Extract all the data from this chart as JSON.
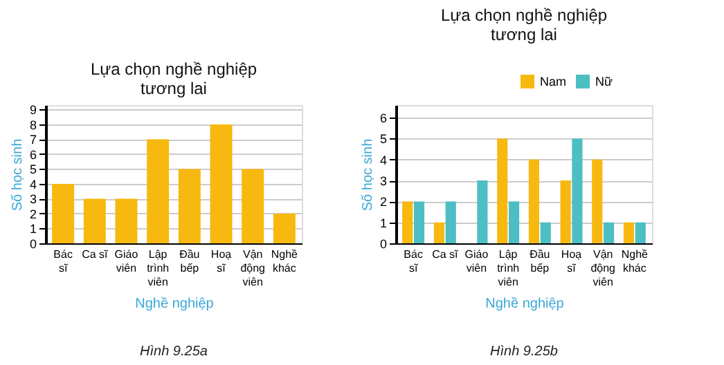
{
  "chart_data": [
    {
      "type": "bar",
      "title": "Lựa chọn nghề nghiệp tương lai",
      "xlabel": "Nghề nghiệp",
      "ylabel": "Số học sinh",
      "categories": [
        "Bác sĩ",
        "Ca sĩ",
        "Giáo viên",
        "Lập trình viên",
        "Đầu bếp",
        "Hoạ sĩ",
        "Vận động viên",
        "Nghề khác"
      ],
      "values": [
        4,
        3,
        3,
        7,
        5,
        8,
        5,
        2
      ],
      "color": "#f7b90f",
      "ylim": [
        0,
        9.3
      ],
      "yticks": [
        0,
        1,
        2,
        3,
        4,
        5,
        6,
        7,
        8,
        9
      ],
      "grid": "y",
      "legend": false,
      "annotations": [
        "Hình 9.25a"
      ]
    },
    {
      "type": "bar",
      "title": "Lựa chọn nghề nghiệp tương lai",
      "xlabel": "Nghề nghiệp",
      "ylabel": "Số học sinh",
      "categories": [
        "Bác sĩ",
        "Ca sĩ",
        "Giáo viên",
        "Lập trình viên",
        "Đầu bếp",
        "Hoạ sĩ",
        "Vận động viên",
        "Nghề khác"
      ],
      "series": [
        {
          "name": "Nam",
          "color": "#f7b90f",
          "values": [
            2,
            1,
            0,
            5,
            4,
            3,
            4,
            1
          ]
        },
        {
          "name": "Nữ",
          "color": "#4dbec4",
          "values": [
            2,
            2,
            3,
            2,
            1,
            5,
            1,
            1
          ]
        }
      ],
      "ylim": [
        0,
        6.6
      ],
      "yticks": [
        0,
        1,
        2,
        3,
        4,
        5,
        6
      ],
      "grid": "y",
      "legend": "top right",
      "annotations": [
        "Hình 9.25b"
      ]
    }
  ]
}
